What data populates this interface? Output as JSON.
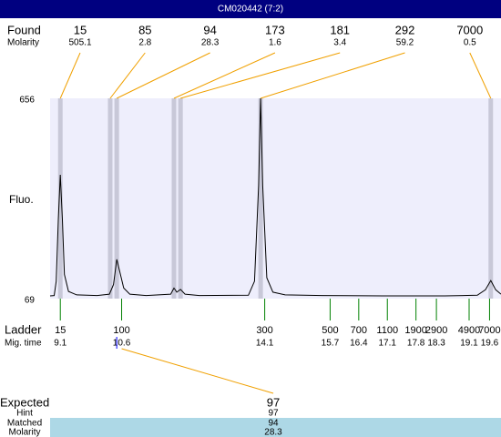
{
  "title": "CM020442 (7:2)",
  "found": {
    "label": "Found",
    "molarity_label": "Molarity",
    "peaks": [
      {
        "size": 15,
        "molarity": 505.1,
        "time": 9.1
      },
      {
        "size": 85,
        "molarity": 2.8,
        "time": 10.32
      },
      {
        "size": 94,
        "molarity": 28.3,
        "time": 10.48
      },
      {
        "size": 173,
        "molarity": 1.6,
        "time": 11.88
      },
      {
        "size": 181,
        "molarity": 3.4,
        "time": 12.04
      },
      {
        "size": 292,
        "molarity": 59.2,
        "time": 14.0
      },
      {
        "size": 7000,
        "molarity": 0.5,
        "time": 19.63
      }
    ]
  },
  "chart_data": {
    "type": "line",
    "y_label": "Fluo.",
    "color": "#000000",
    "x": [
      8.85,
      8.95,
      9.0,
      9.05,
      9.1,
      9.15,
      9.2,
      9.3,
      9.5,
      10.0,
      10.3,
      10.4,
      10.48,
      10.55,
      10.65,
      10.8,
      11.2,
      11.8,
      11.88,
      11.95,
      12.04,
      12.15,
      12.5,
      13.7,
      13.85,
      13.95,
      14.0,
      14.05,
      14.15,
      14.3,
      14.6,
      15.5,
      17.0,
      18.5,
      19.3,
      19.5,
      19.63,
      19.75,
      19.88
    ],
    "values": [
      77,
      78,
      120,
      300,
      432,
      300,
      140,
      90,
      80,
      78,
      82,
      110,
      184,
      150,
      100,
      82,
      78,
      82,
      100,
      88,
      96,
      82,
      78,
      79,
      120,
      400,
      656,
      400,
      130,
      88,
      80,
      78,
      77,
      77,
      79,
      95,
      122,
      95,
      82
    ],
    "xlim": [
      8.85,
      19.88
    ],
    "ylim": [
      69,
      656
    ],
    "yticks": [
      69,
      656
    ]
  },
  "ladder": {
    "label": "Ladder",
    "time_label": "Mig. time",
    "sizes": [
      15,
      100,
      300,
      500,
      700,
      1100,
      1900,
      2900,
      4900,
      7000
    ],
    "times": [
      9.1,
      10.6,
      14.1,
      15.7,
      16.4,
      17.1,
      17.8,
      18.3,
      19.1,
      19.6
    ]
  },
  "expected": {
    "label": "Expected",
    "value": 97,
    "hint_label": "Hint",
    "hint": 97,
    "matched_label": "Matched",
    "matched": 94,
    "molarity_label": "Molarity",
    "molarity": 28.3
  }
}
